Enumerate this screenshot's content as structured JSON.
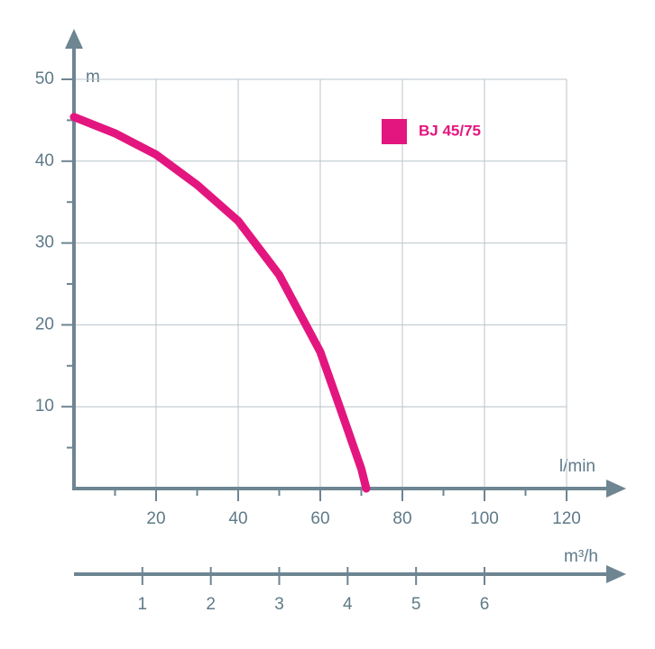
{
  "chart_data": {
    "type": "line",
    "x_label": "l/min",
    "y_label": "m",
    "xlim": [
      0,
      120
    ],
    "xticks": [
      20,
      40,
      60,
      80,
      100,
      120
    ],
    "xminor": [
      10,
      30,
      50,
      70,
      90,
      110
    ],
    "ylim": [
      0,
      50
    ],
    "yticks": [
      10,
      20,
      30,
      40,
      50
    ],
    "yminor": [
      5,
      15,
      25,
      35,
      45
    ],
    "grid": true,
    "x2_label": "m³/h",
    "x2lim": [
      0,
      7.2
    ],
    "x2ticks": [
      1,
      2,
      3,
      4,
      5,
      6
    ],
    "legend": "top-right",
    "series": [
      {
        "name": "BJ 45/75",
        "color": "#e3167f",
        "x": [
          0,
          10,
          20,
          30,
          40,
          50,
          60,
          65,
          70,
          71.2
        ],
        "values": [
          45.4,
          43.4,
          40.8,
          37.1,
          32.7,
          26.1,
          16.7,
          9.6,
          2.4,
          0
        ]
      }
    ]
  }
}
